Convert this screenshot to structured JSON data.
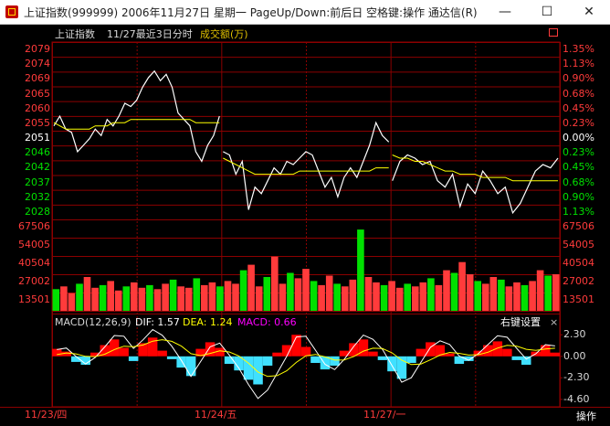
{
  "window": {
    "title": "上证指数(999999) 2006年11月27日 星期一 PageUp/Down:前后日 空格键:操作 通达信(R)",
    "minimize": "—",
    "maximize": "☐",
    "close": "✕"
  },
  "header": {
    "name": "上证指数",
    "period": "11/27最近3日分时",
    "volume_label": "成交额(万)",
    "restore_icon": "restore-icon"
  },
  "price_axis_left": [
    "2079",
    "2074",
    "2069",
    "2065",
    "2060",
    "2055",
    "2051",
    "2046",
    "2042",
    "2037",
    "2032",
    "2028"
  ],
  "price_axis_right": [
    "1.35%",
    "1.13%",
    "0.90%",
    "0.68%",
    "0.45%",
    "0.23%",
    "0.00%",
    "0.23%",
    "0.45%",
    "0.68%",
    "0.90%",
    "1.13%"
  ],
  "volume_axis": [
    "67506",
    "54005",
    "40504",
    "27002",
    "13501"
  ],
  "macd": {
    "label_name": "MACD(12,26,9)",
    "dif": "DIF: 1.57",
    "dea": "DEA: 1.24",
    "macd": "MACD: 0.66",
    "settings": "右键设置",
    "close": "×",
    "axis": [
      "2.30",
      "0.00",
      "-2.30",
      "-4.60"
    ]
  },
  "dates": [
    "11/23/四",
    "11/24/五",
    "11/27/一"
  ],
  "op_button": "操作",
  "colors": {
    "up": "#ff3b3b",
    "down": "#00e000",
    "flat": "#ffffff",
    "grid": "#8b0000",
    "avg_line": "#ffff00",
    "macd_pos": "#ff0000",
    "macd_neg": "#40e0ff",
    "macd_label": "#ff00ff"
  },
  "chart_data": {
    "type": "line",
    "base_price": 2051,
    "price_range": [
      2026,
      2081
    ],
    "series": [
      {
        "values": [
          2055,
          2058,
          2054,
          2053,
          2047,
          2049,
          2051,
          2054,
          2052,
          2057,
          2055,
          2058,
          2062,
          2061,
          2063,
          2067,
          2070,
          2072,
          2069,
          2071,
          2067,
          2059,
          2057,
          2055,
          2047,
          2044,
          2049,
          2052,
          2058
        ],
        "avg": [
          2056,
          2055,
          2054,
          2054,
          2054,
          2054,
          2054,
          2055,
          2055,
          2055,
          2056,
          2056,
          2056,
          2057,
          2057,
          2057,
          2057,
          2057,
          2057,
          2057,
          2057,
          2057,
          2057,
          2057,
          2056,
          2056,
          2056,
          2056,
          2056
        ]
      },
      {
        "values": [
          2047,
          2046,
          2040,
          2044,
          2029,
          2036,
          2034,
          2038,
          2042,
          2040,
          2044,
          2043,
          2045,
          2047,
          2046,
          2041,
          2036,
          2039,
          2033,
          2039,
          2042,
          2039,
          2044,
          2049,
          2056,
          2052,
          2050
        ],
        "avg": [
          2045,
          2044,
          2043,
          2042,
          2041,
          2040,
          2040,
          2040,
          2040,
          2040,
          2040,
          2040,
          2041,
          2041,
          2041,
          2041,
          2041,
          2041,
          2041,
          2041,
          2041,
          2041,
          2041,
          2041,
          2042,
          2042,
          2042
        ]
      },
      {
        "values": [
          2038,
          2044,
          2046,
          2045,
          2043,
          2044,
          2038,
          2036,
          2040,
          2030,
          2037,
          2034,
          2041,
          2038,
          2034,
          2036,
          2028,
          2031,
          2036,
          2041,
          2043,
          2042,
          2045
        ],
        "avg": [
          2046,
          2045,
          2045,
          2044,
          2044,
          2043,
          2042,
          2041,
          2041,
          2040,
          2040,
          2040,
          2039,
          2039,
          2039,
          2039,
          2038,
          2038,
          2038,
          2038,
          2038,
          2038,
          2038
        ]
      }
    ],
    "volume": [
      16000,
      18000,
      13000,
      20000,
      25000,
      17000,
      19000,
      22000,
      15000,
      18000,
      21000,
      17000,
      19000,
      16000,
      20000,
      23000,
      18000,
      17000,
      24000,
      19000,
      21000,
      18000,
      22000,
      20000,
      30000,
      34000,
      18000,
      25000,
      40000,
      20000,
      28000,
      24000,
      31000,
      22000,
      19000,
      26000,
      20000,
      18000,
      23000,
      60000,
      25000,
      21000,
      19000,
      22000,
      17000,
      20000,
      18000,
      21000,
      24000,
      19000,
      30000,
      28000,
      36000,
      27000,
      22000,
      20000,
      25000,
      23000,
      18000,
      21000,
      19000,
      22000,
      30000,
      26000,
      27000
    ],
    "macd_hist": [
      0.8,
      0.5,
      -0.6,
      -0.9,
      0.4,
      1.2,
      1.8,
      0.9,
      -0.5,
      1.4,
      2.0,
      0.6,
      -0.3,
      -1.2,
      -2.1,
      0.8,
      1.5,
      0.9,
      -0.8,
      -1.5,
      -2.5,
      -3.0,
      -1.0,
      0.4,
      1.2,
      2.3,
      1.0,
      -0.7,
      -1.4,
      -1.0,
      0.6,
      1.4,
      1.8,
      0.5,
      -0.4,
      -1.6,
      -2.4,
      -0.7,
      0.8,
      1.5,
      1.2,
      0.3,
      -0.8,
      -0.5,
      0.6,
      1.2,
      1.6,
      0.8,
      -0.4,
      -0.9,
      0.5,
      1.2,
      0.4
    ],
    "macd_range": [
      -5.2,
      3.2
    ]
  }
}
